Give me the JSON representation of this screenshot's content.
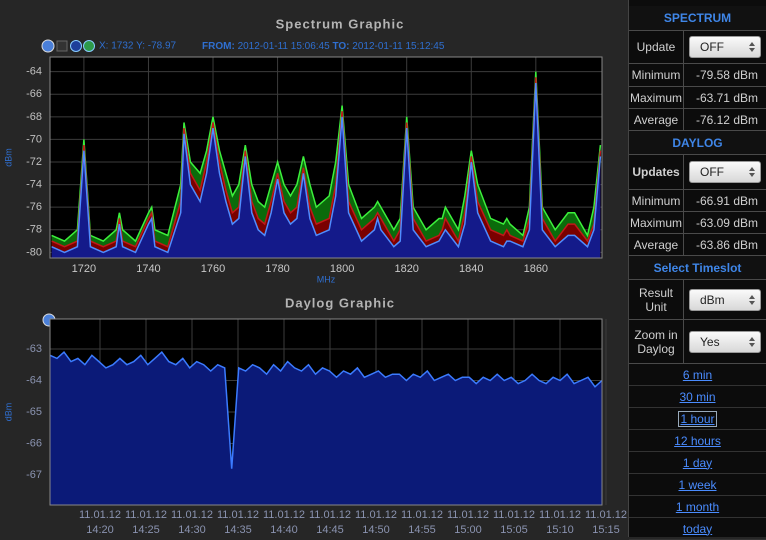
{
  "chart_data": [
    {
      "type": "area",
      "title": "Spectrum Graphic",
      "x_label": "MHz",
      "y_label": "dBm",
      "cursor": "X: 1732 Y: -78.97",
      "from_label": "FROM:",
      "from": "2012-01-11 15:06:45",
      "to_label": "TO:",
      "to": "2012-01-11 15:12:45",
      "x": [
        1710,
        1714,
        1718,
        1720,
        1722,
        1726,
        1730,
        1731,
        1732,
        1736,
        1740,
        1741,
        1742,
        1746,
        1750,
        1751,
        1753,
        1756,
        1758,
        1760,
        1762,
        1764,
        1766,
        1768,
        1770,
        1772,
        1774,
        1776,
        1778,
        1780,
        1782,
        1784,
        1786,
        1788,
        1790,
        1792,
        1796,
        1798,
        1800,
        1802,
        1806,
        1810,
        1811,
        1812,
        1816,
        1818,
        1820,
        1822,
        1826,
        1830,
        1831,
        1832,
        1836,
        1838,
        1840,
        1842,
        1846,
        1850,
        1851,
        1852,
        1856,
        1858,
        1860,
        1862,
        1866,
        1870,
        1872,
        1876,
        1878,
        1880
      ],
      "series": [
        {
          "color": "#3cf03c",
          "fill": "#0b6b0b",
          "values": [
            -78.5,
            -79,
            -78,
            -70,
            -78.5,
            -79,
            -78,
            -76.5,
            -78,
            -79,
            -76.5,
            -76,
            -78,
            -78.5,
            -74,
            -68.5,
            -72,
            -73,
            -71,
            -68,
            -71,
            -73,
            -75,
            -74,
            -70.5,
            -74,
            -75.5,
            -76,
            -74,
            -72,
            -74,
            -75,
            -74,
            -71.5,
            -74,
            -76,
            -75,
            -72,
            -67,
            -74,
            -77,
            -76,
            -75.5,
            -76,
            -78,
            -77,
            -68,
            -76,
            -78,
            -77,
            -77,
            -76,
            -78,
            -75,
            -71,
            -74,
            -77,
            -77.5,
            -77,
            -77.5,
            -78.5,
            -76,
            -64,
            -76,
            -78,
            -76.5,
            -76.5,
            -78.5,
            -76,
            -70.5
          ]
        },
        {
          "color": "#c01818",
          "fill": "#7a0000",
          "values": [
            -79,
            -79.5,
            -79,
            -70.5,
            -79,
            -79.5,
            -79,
            -77,
            -79,
            -79.5,
            -77,
            -76.5,
            -79,
            -79.5,
            -75.5,
            -69,
            -73,
            -74.5,
            -72,
            -68.5,
            -72,
            -74.5,
            -76.5,
            -76,
            -71,
            -75.5,
            -77,
            -77.5,
            -75.5,
            -73,
            -75.5,
            -76.5,
            -76,
            -72.5,
            -76,
            -77.5,
            -77,
            -74,
            -67.5,
            -75.5,
            -78,
            -77,
            -76.5,
            -77,
            -79,
            -78,
            -68.5,
            -77,
            -79,
            -78.5,
            -78,
            -77,
            -79,
            -76.5,
            -71.5,
            -75.5,
            -78,
            -78.5,
            -78,
            -78.5,
            -79,
            -77,
            -64.5,
            -77,
            -79,
            -77.5,
            -77.5,
            -79,
            -77.5,
            -71
          ]
        },
        {
          "color": "#4f8cff",
          "fill": "#141a8a",
          "values": [
            -79.5,
            -80,
            -79.5,
            -71,
            -79.5,
            -80,
            -79.5,
            -77.5,
            -79.5,
            -80,
            -77.5,
            -77,
            -79.5,
            -80,
            -76.5,
            -69.5,
            -74,
            -75.5,
            -73,
            -69,
            -73,
            -75.5,
            -77.5,
            -77,
            -71.5,
            -76.5,
            -78,
            -78.5,
            -76.5,
            -73.5,
            -76.5,
            -77.5,
            -77,
            -73,
            -77,
            -78.5,
            -78,
            -75,
            -68,
            -76.5,
            -79,
            -78,
            -77,
            -78,
            -79.5,
            -79,
            -69,
            -78,
            -79.5,
            -79,
            -78.5,
            -78,
            -79.5,
            -77.5,
            -72,
            -76.5,
            -79,
            -79.5,
            -79,
            -79,
            -79.5,
            -78,
            -65,
            -78,
            -79.5,
            -78.5,
            -78.5,
            -79.5,
            -78,
            -71.5
          ]
        }
      ],
      "xlim": [
        1709.5,
        1880.5
      ],
      "ylim": [
        -80.5,
        -62.7
      ],
      "xticks": [
        1720,
        1740,
        1760,
        1780,
        1800,
        1820,
        1840,
        1860
      ],
      "yticks": [
        -64,
        -66,
        -68,
        -70,
        -72,
        -74,
        -76,
        -78,
        -80
      ],
      "grid": true
    },
    {
      "type": "area",
      "title": "Daylog Graphic",
      "y_label": "dBm",
      "series": [
        {
          "color": "#3b7bff",
          "fill": "#0b1a78",
          "values": [
            -63.2,
            -63.3,
            -63.1,
            -63.4,
            -63.3,
            -63.5,
            -63.2,
            -63.4,
            -63.6,
            -63.5,
            -63.3,
            -63.5,
            -63.4,
            -63.2,
            -63.5,
            -63.3,
            -63.1,
            -63.4,
            -63.5,
            -63.3,
            -63.6,
            -63.4,
            -63.5,
            -63.7,
            -63.5,
            -63.6,
            -66.8,
            -63.6,
            -63.7,
            -63.5,
            -63.6,
            -63.8,
            -63.5,
            -63.7,
            -63.4,
            -63.6,
            -63.7,
            -63.5,
            -63.8,
            -63.6,
            -63.7,
            -63.9,
            -63.7,
            -63.8,
            -63.6,
            -63.9,
            -63.8,
            -63.7,
            -63.9,
            -63.8,
            -63.8,
            -64.0,
            -63.8,
            -63.9,
            -63.7,
            -64.0,
            -63.9,
            -63.8,
            -64.0,
            -63.9,
            -63.9,
            -64.1,
            -63.9,
            -64.0,
            -63.8,
            -64.0,
            -63.9,
            -64.1,
            -64.0,
            -63.8,
            -64.0,
            -64.1,
            -63.9,
            -64.0,
            -63.8,
            -64.1,
            -64.0,
            -63.9,
            -64.2,
            -64.0
          ]
        }
      ],
      "ylim": [
        -67.95,
        -62.05
      ],
      "yticks": [
        -63,
        -64,
        -65,
        -66,
        -67
      ],
      "grid": true,
      "x_tick_labels": [
        {
          "date": "11.01.12",
          "time": "14:20"
        },
        {
          "date": "11.01.12",
          "time": "14:25"
        },
        {
          "date": "11.01.12",
          "time": "14:30"
        },
        {
          "date": "11.01.12",
          "time": "14:35"
        },
        {
          "date": "11.01.12",
          "time": "14:40"
        },
        {
          "date": "11.01.12",
          "time": "14:45"
        },
        {
          "date": "11.01.12",
          "time": "14:50"
        },
        {
          "date": "11.01.12",
          "time": "14:55"
        },
        {
          "date": "11.01.12",
          "time": "15:00"
        },
        {
          "date": "11.01.12",
          "time": "15:05"
        },
        {
          "date": "11.01.12",
          "time": "15:10"
        },
        {
          "date": "11.01.12",
          "time": "15:15"
        }
      ]
    }
  ],
  "sidebar": {
    "spectrum_header": "SPECTRUM",
    "update": {
      "label": "Update",
      "value": "OFF"
    },
    "spectrum_stats": [
      {
        "label": "Minimum",
        "value": "-79.58 dBm"
      },
      {
        "label": "Maximum",
        "value": "-63.71 dBm"
      },
      {
        "label": "Average",
        "value": "-76.12 dBm"
      }
    ],
    "daylog_header": "DAYLOG",
    "updates": {
      "label": "Updates",
      "value": "OFF"
    },
    "daylog_stats": [
      {
        "label": "Minimum",
        "value": "-66.91 dBm"
      },
      {
        "label": "Maximum",
        "value": "-63.09 dBm"
      },
      {
        "label": "Average",
        "value": "-63.86 dBm"
      }
    ],
    "timeslot_header": "Select Timeslot",
    "result_unit": {
      "label": "Result Unit",
      "value": "dBm"
    },
    "zoom": {
      "label": "Zoom in Daylog",
      "value": "Yes"
    },
    "links": [
      "6 min",
      "30 min",
      "1 hour",
      "12 hours",
      "1 day",
      "1 week",
      "1 month",
      "today"
    ]
  }
}
